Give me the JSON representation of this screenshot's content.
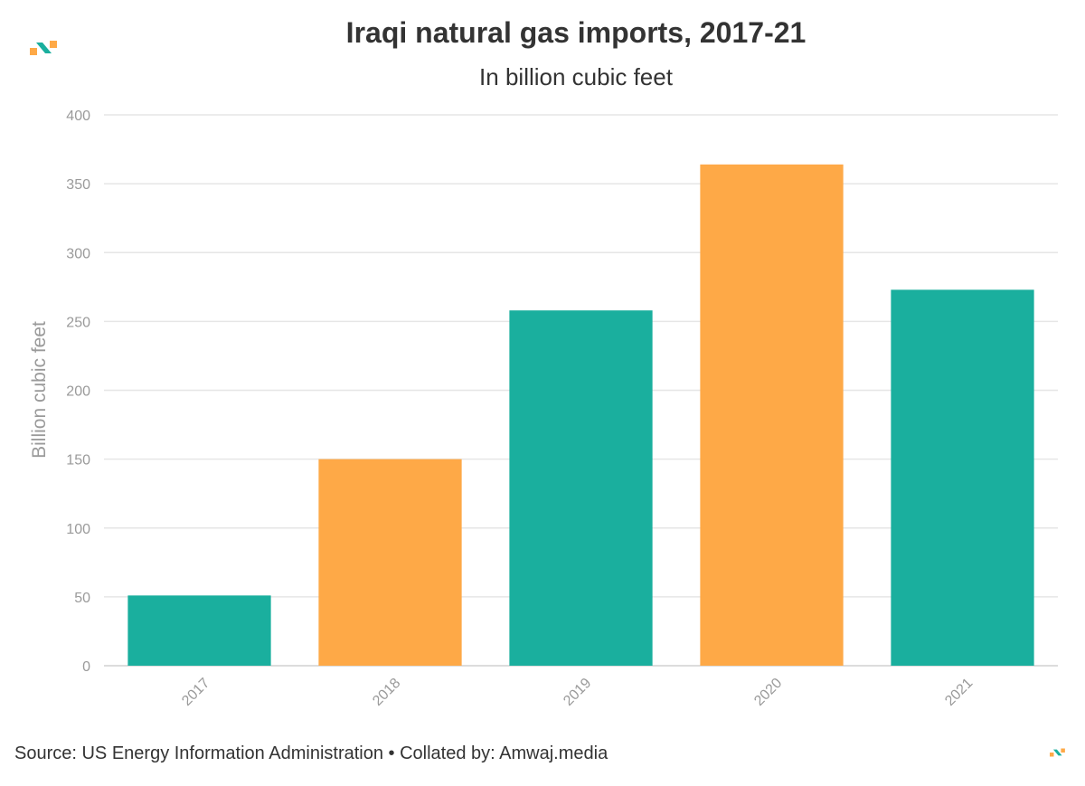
{
  "header": {
    "title": "Iraqi natural gas imports, 2017-21",
    "subtitle": "In billion cubic feet"
  },
  "footer": {
    "source": "Source: US Energy Information Administration • Collated by: Amwaj.media"
  },
  "colors": {
    "teal": "#1aaf9e",
    "orange": "#fea947",
    "grid": "#e6e6e6",
    "axis_text": "#9a9a9a"
  },
  "icons": {
    "brand_logo": "amwaj-logo-icon"
  },
  "chart_data": {
    "type": "bar",
    "title": "Iraqi natural gas imports, 2017-21",
    "subtitle": "In billion cubic feet",
    "xlabel": "",
    "ylabel": "Billion cubic feet",
    "categories": [
      "2017",
      "2018",
      "2019",
      "2020",
      "2021"
    ],
    "values": [
      51,
      150,
      258,
      364,
      273
    ],
    "bar_colors": [
      "#1aaf9e",
      "#fea947",
      "#1aaf9e",
      "#fea947",
      "#1aaf9e"
    ],
    "ylim": [
      0,
      400
    ],
    "yticks": [
      0,
      50,
      100,
      150,
      200,
      250,
      300,
      350,
      400
    ],
    "grid": true,
    "legend": "none"
  }
}
